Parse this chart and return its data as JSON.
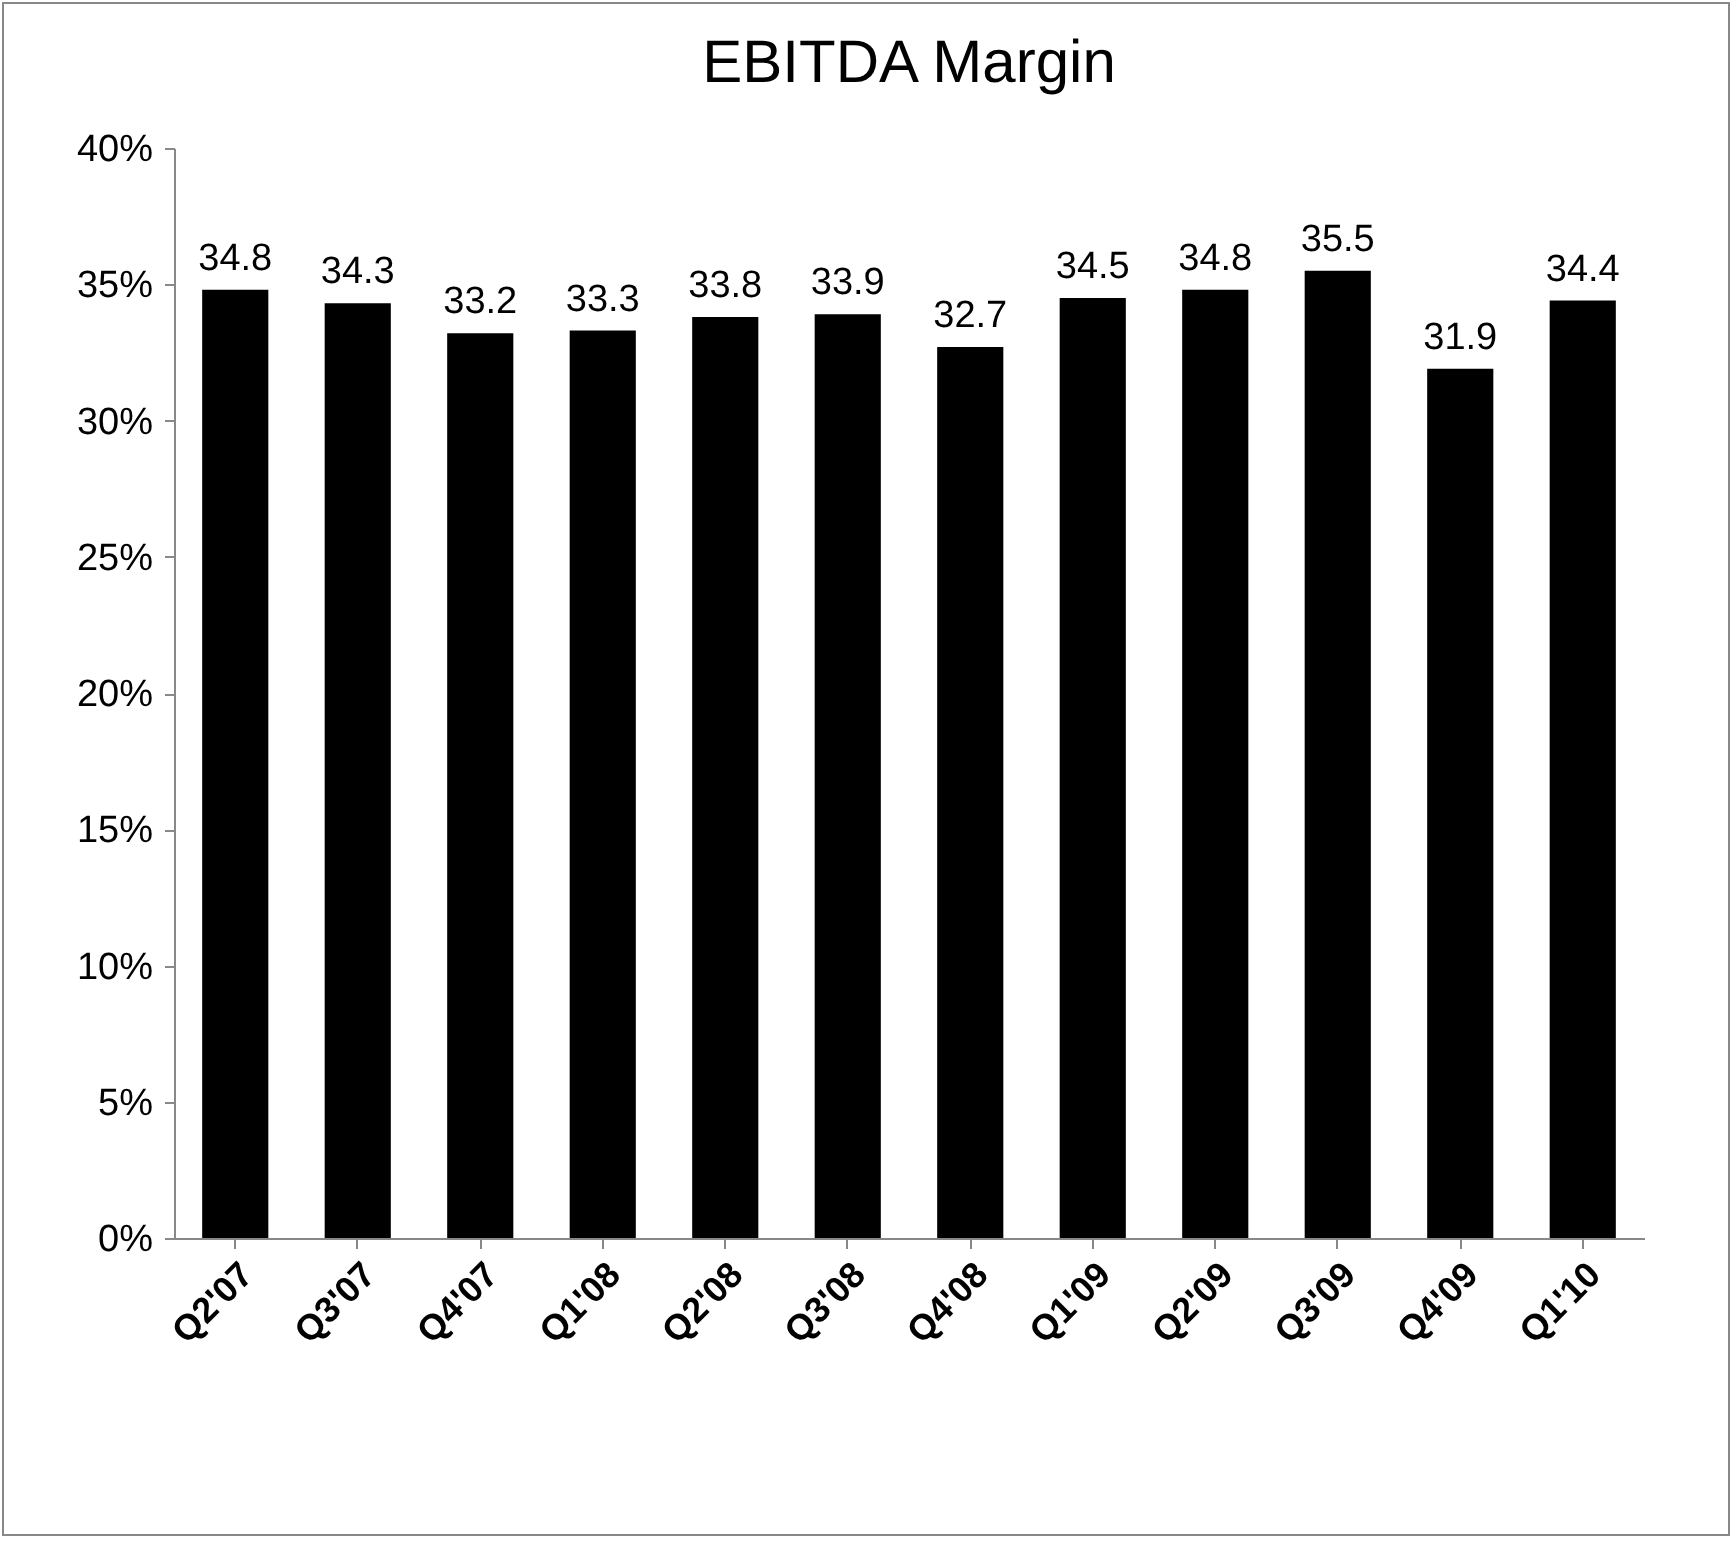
{
  "chart_data": {
    "type": "bar",
    "title": "EBITDA Margin",
    "categories": [
      "Q2'07",
      "Q3'07",
      "Q4'07",
      "Q1'08",
      "Q2'08",
      "Q3'08",
      "Q4'08",
      "Q1'09",
      "Q2'09",
      "Q3'09",
      "Q4'09",
      "Q1'10"
    ],
    "values": [
      34.8,
      34.3,
      33.2,
      33.3,
      33.8,
      33.9,
      32.7,
      34.5,
      34.8,
      35.5,
      31.9,
      34.4
    ],
    "color": "#000000",
    "data_labels": true,
    "grid": false,
    "ylim": [
      0,
      40
    ],
    "yticks": [
      {
        "value": 0,
        "label": "0%"
      },
      {
        "value": 5,
        "label": "5%"
      },
      {
        "value": 10,
        "label": "10%"
      },
      {
        "value": 15,
        "label": "15%"
      },
      {
        "value": 20,
        "label": "20%"
      },
      {
        "value": 25,
        "label": "25%"
      },
      {
        "value": 30,
        "label": "30%"
      },
      {
        "value": 35,
        "label": "35%"
      },
      {
        "value": 40,
        "label": "40%"
      }
    ]
  }
}
